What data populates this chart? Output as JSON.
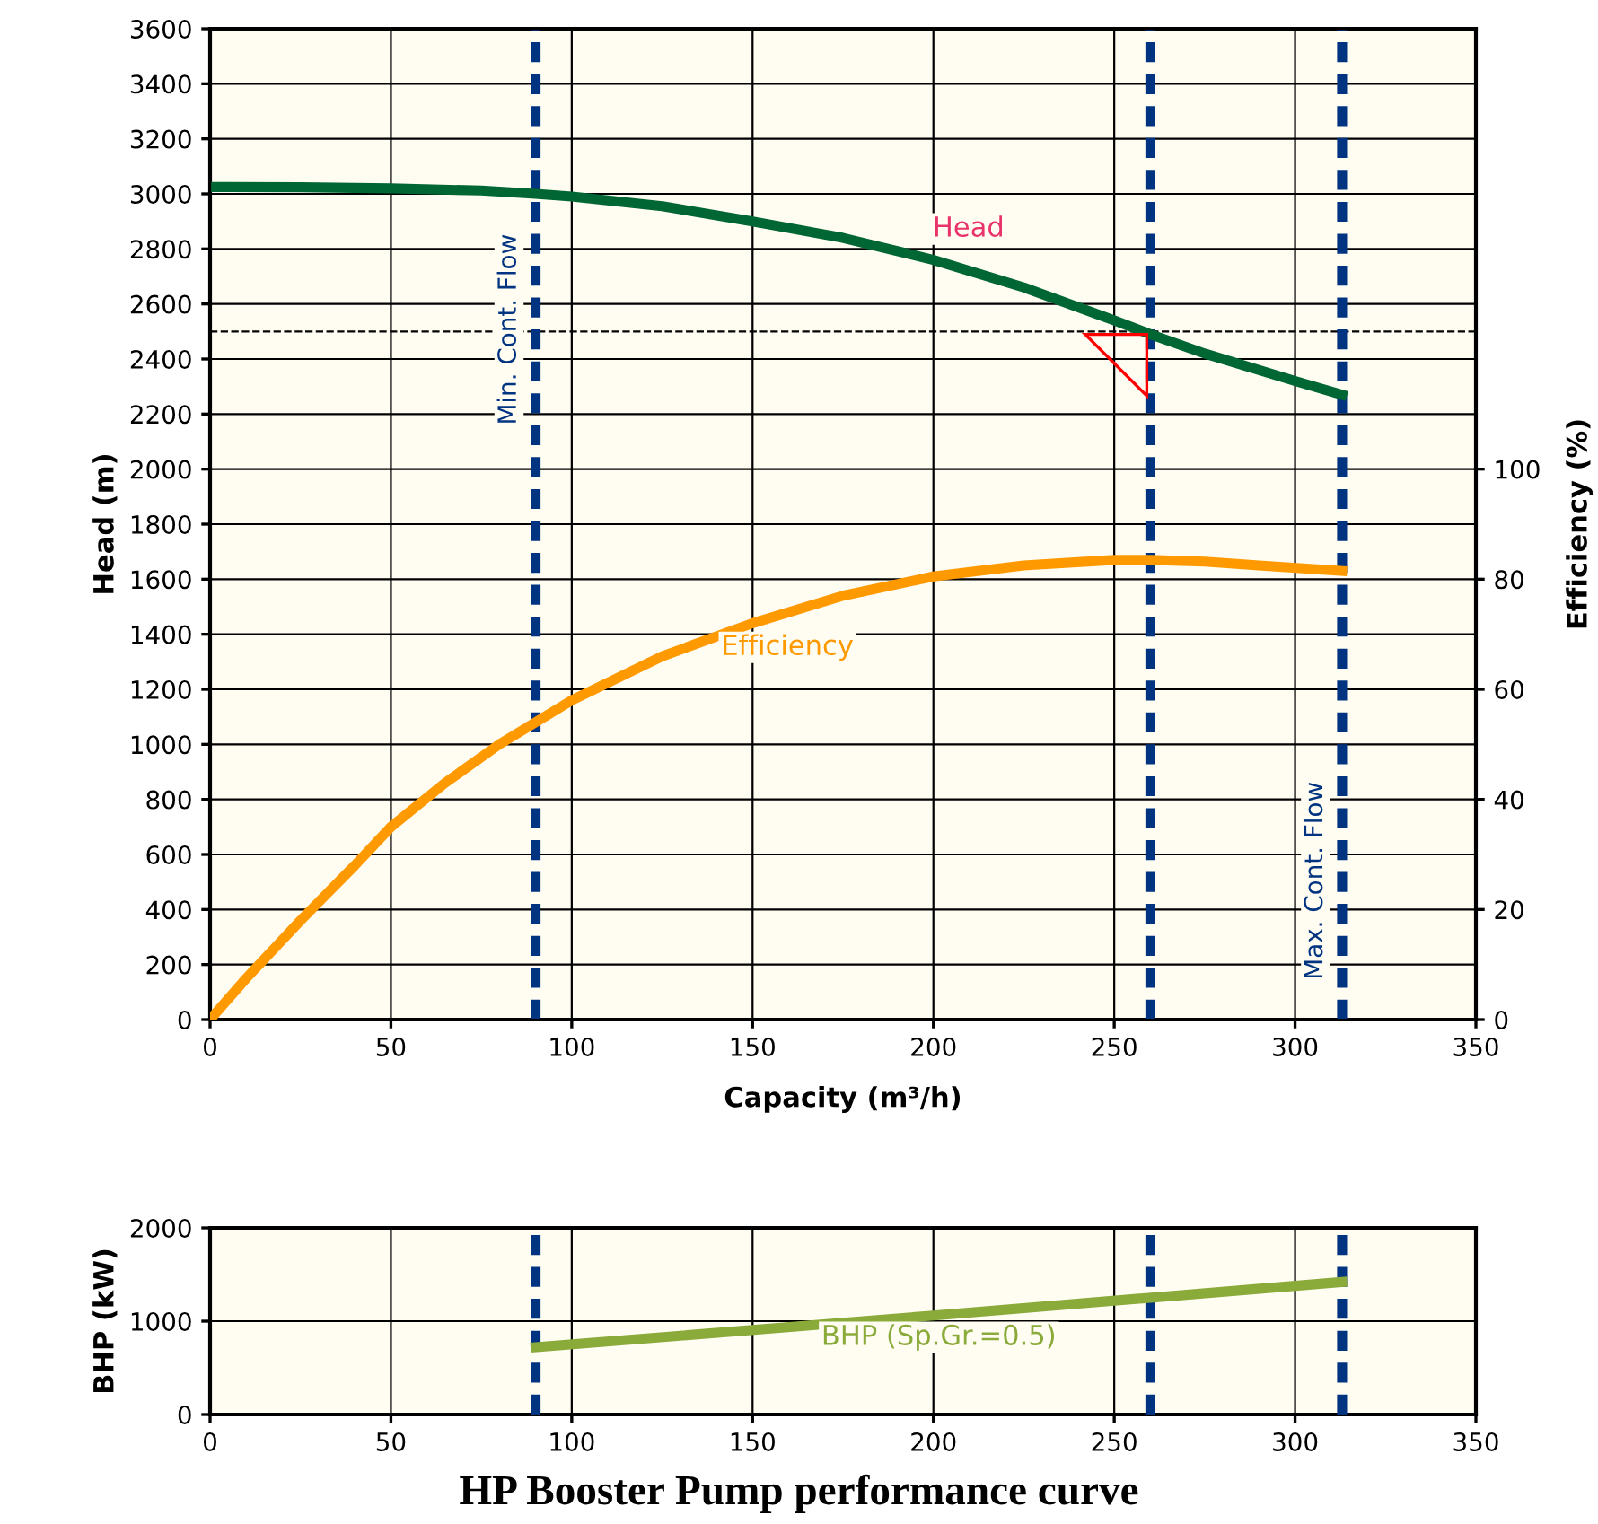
{
  "chart_data": [
    {
      "type": "line",
      "xlabel": "Capacity (m³/h)",
      "ylabel": "Head (m)",
      "y2label": "Efficiency (%)",
      "xlim": [
        0,
        350
      ],
      "xticks": [
        0,
        50,
        100,
        150,
        200,
        250,
        300,
        350
      ],
      "ylim": [
        0,
        3600
      ],
      "yticks": [
        0,
        200,
        400,
        600,
        800,
        1000,
        1200,
        1400,
        1600,
        1800,
        2000,
        2200,
        2400,
        2600,
        2800,
        3000,
        3200,
        3400,
        3600
      ],
      "y2lim": [
        0,
        180
      ],
      "y2ticks": [
        0,
        20,
        40,
        60,
        80,
        100
      ],
      "grid": true,
      "series": [
        {
          "name": "Head",
          "color": "#006633",
          "x": [
            0,
            25,
            50,
            75,
            90,
            100,
            125,
            150,
            175,
            200,
            225,
            250,
            260,
            275,
            300,
            313
          ],
          "values": [
            3025,
            3024,
            3020,
            3012,
            3000,
            2990,
            2955,
            2900,
            2840,
            2760,
            2660,
            2540,
            2490,
            2420,
            2320,
            2270
          ]
        },
        {
          "name": "Efficiency",
          "color": "#ff9900",
          "axis": "y2",
          "x": [
            0,
            10,
            25,
            40,
            50,
            65,
            80,
            90,
            100,
            125,
            150,
            175,
            200,
            225,
            250,
            260,
            275,
            290,
            313
          ],
          "values": [
            0,
            7.5,
            18,
            28,
            35,
            43,
            50,
            54,
            58,
            66,
            72,
            77,
            80.5,
            82.5,
            83.5,
            83.5,
            83.2,
            82.5,
            81.5
          ]
        }
      ],
      "ref_lines": [
        {
          "axis": "y",
          "value": 2500,
          "color": "#000000",
          "line_style": "dashed"
        },
        {
          "axis": "x",
          "value": 90,
          "label": "Min. Cont. Flow",
          "color": "#003380",
          "line_style": "dashed"
        },
        {
          "axis": "x",
          "value": 260,
          "color": "#003380",
          "line_style": "dashed"
        },
        {
          "axis": "x",
          "value": 313,
          "label": "Max. Cont. Flow",
          "color": "#003380",
          "line_style": "dashed"
        }
      ]
    },
    {
      "type": "line",
      "ylabel": "BHP (kW)",
      "title": "HP Booster Pump performance curve",
      "xlim": [
        0,
        350
      ],
      "xticks": [
        0,
        50,
        100,
        150,
        200,
        250,
        300,
        350
      ],
      "ylim": [
        0,
        2000
      ],
      "yticks": [
        0,
        1000,
        2000
      ],
      "grid": true,
      "series": [
        {
          "name": "BHP (Sp.Gr.=0.5)",
          "color": "#8aaa3a",
          "x": [
            90,
            200,
            313
          ],
          "values": [
            720,
            1060,
            1420
          ]
        }
      ],
      "ref_lines": [
        {
          "axis": "x",
          "value": 90,
          "color": "#003380",
          "line_style": "dashed"
        },
        {
          "axis": "x",
          "value": 260,
          "color": "#003380",
          "line_style": "dashed"
        },
        {
          "axis": "x",
          "value": 313,
          "color": "#003380",
          "line_style": "dashed"
        }
      ]
    }
  ]
}
